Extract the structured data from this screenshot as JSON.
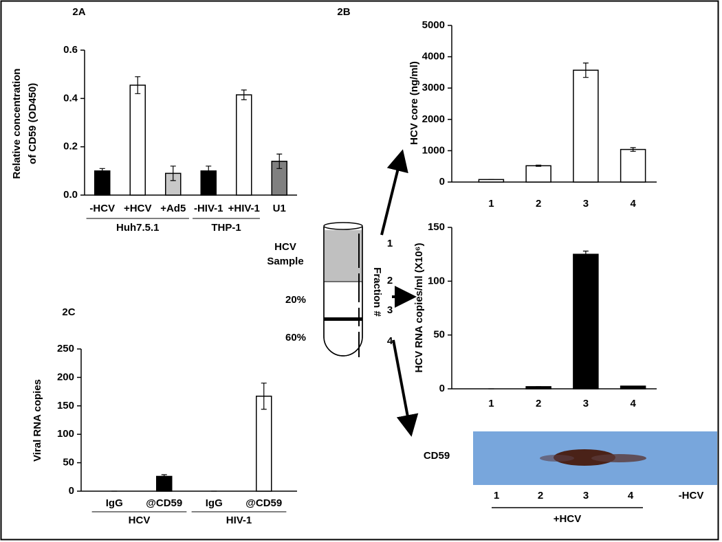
{
  "panels": [
    "2A",
    "2B",
    "2C"
  ],
  "chart_data": [
    {
      "type": "bar",
      "ylabel": [
        "Relative concentration",
        "of CD59 (OD450)"
      ],
      "categories": [
        "-HCV",
        "+HCV",
        "+Ad5",
        "-HIV-1",
        "+HIV-1",
        "U1"
      ],
      "values": [
        0.1,
        0.455,
        0.09,
        0.1,
        0.415,
        0.14
      ],
      "errors": [
        0.01,
        0.035,
        0.03,
        0.02,
        0.02,
        0.03
      ],
      "colors": [
        "#000000",
        "#ffffff",
        "#c8c8c8",
        "#000000",
        "#ffffff",
        "#808080"
      ],
      "groups": [
        "Huh7.5.1",
        "THP-1"
      ],
      "ylim": [
        0,
        0.6
      ],
      "yticks": [
        {
          "value": 0,
          "label": "0.0"
        },
        0.2,
        0.4,
        0.6
      ]
    },
    {
      "type": "bar",
      "ylabel": [
        "HCV core (ng/ml)"
      ],
      "categories": [
        "1",
        "2",
        "3",
        "4"
      ],
      "values": [
        80,
        520,
        3570,
        1040
      ],
      "errors": [
        0,
        20,
        230,
        60
      ],
      "colors": [
        "#ffffff",
        "#ffffff",
        "#ffffff",
        "#ffffff"
      ],
      "ylim": [
        0,
        5000
      ],
      "yticks": [
        0,
        1000,
        2000,
        3000,
        4000,
        5000
      ]
    },
    {
      "type": "bar",
      "ylabel": [
        "HCV RNA copies/ml (X10⁶)"
      ],
      "categories": [
        "1",
        "2",
        "3",
        "4"
      ],
      "values": [
        0,
        2,
        125,
        2.5
      ],
      "errors": [
        0,
        0,
        3,
        0
      ],
      "colors": [
        "#000000",
        "#000000",
        "#000000",
        "#000000"
      ],
      "ylim": [
        0,
        150
      ],
      "yticks": [
        0,
        50,
        100,
        150
      ]
    },
    {
      "type": "bar",
      "ylabel": [
        "Viral RNA copies"
      ],
      "categories": [
        "IgG",
        "@CD59",
        "IgG",
        "@CD59"
      ],
      "values": [
        0,
        26,
        0,
        167
      ],
      "errors": [
        0,
        3,
        0,
        23
      ],
      "colors": [
        "#000000",
        "#000000",
        "#ffffff",
        "#ffffff"
      ],
      "groups": [
        "HCV",
        "HIV-1"
      ],
      "ylim": [
        0,
        250
      ],
      "yticks": [
        0,
        50,
        100,
        150,
        200,
        250
      ]
    }
  ],
  "diagram": {
    "sample": [
      "HCV",
      "Sample"
    ],
    "gradient": [
      "20%",
      "60%"
    ],
    "fraction_title": "Fraction #",
    "fractions": [
      "1",
      "2",
      "3",
      "4"
    ]
  },
  "blot": {
    "label": "CD59",
    "lanes": [
      "1",
      "2",
      "3",
      "4",
      "-HCV"
    ],
    "group": "+HCV"
  }
}
